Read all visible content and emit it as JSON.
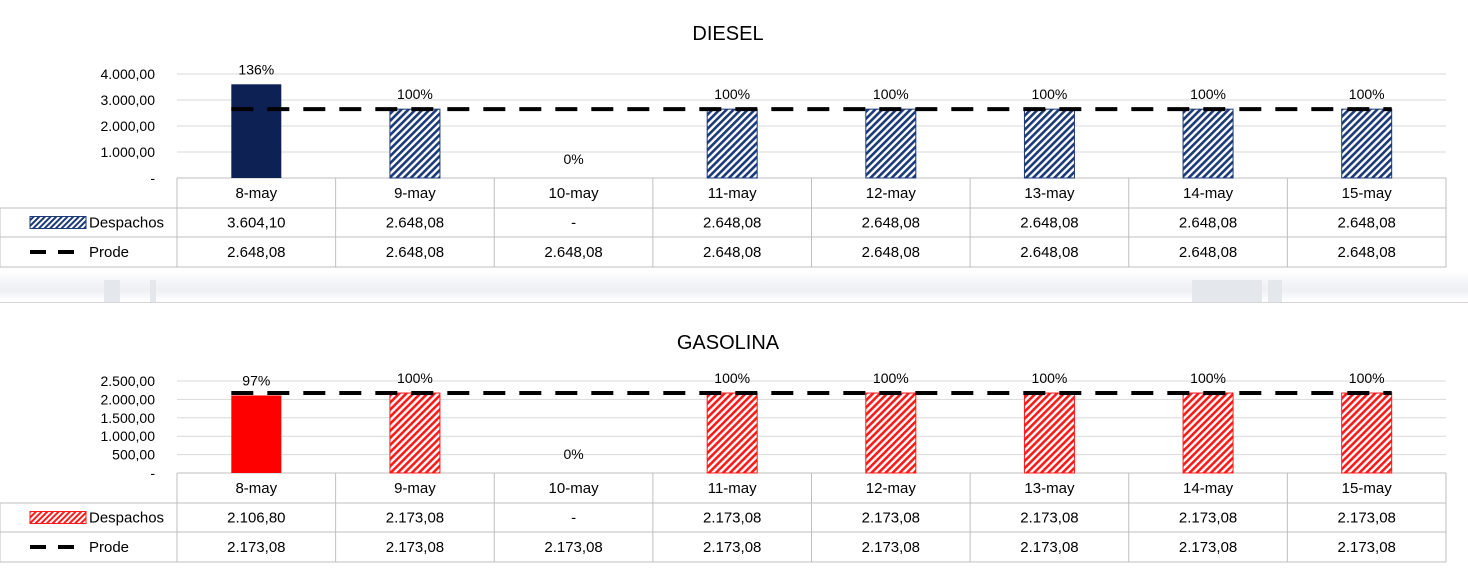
{
  "colors": {
    "diesel_solid": "#0d2154",
    "diesel_hatch": "#1c3a78",
    "gasolina_solid": "#ff0000",
    "gasolina_hatch": "#ff1a1a",
    "prode_line": "#000000",
    "grid": "#d9d9d9"
  },
  "chart_data": [
    {
      "type": "bar",
      "title": "DIESEL",
      "categories": [
        "8-may",
        "9-may",
        "10-may",
        "11-may",
        "12-may",
        "13-may",
        "14-may",
        "15-may"
      ],
      "series": [
        {
          "name": "Despachos",
          "kind": "bar",
          "values": [
            3604.1,
            2648.08,
            0,
            2648.08,
            2648.08,
            2648.08,
            2648.08,
            2648.08
          ],
          "display": [
            "3.604,10",
            "2.648,08",
            "-",
            "2.648,08",
            "2.648,08",
            "2.648,08",
            "2.648,08",
            "2.648,08"
          ]
        },
        {
          "name": "Prode",
          "kind": "line-dashed",
          "values": [
            2648.08,
            2648.08,
            2648.08,
            2648.08,
            2648.08,
            2648.08,
            2648.08,
            2648.08
          ],
          "display": [
            "2.648,08",
            "2.648,08",
            "2.648,08",
            "2.648,08",
            "2.648,08",
            "2.648,08",
            "2.648,08",
            "2.648,08"
          ]
        }
      ],
      "percent_labels": [
        "136%",
        "100%",
        "0%",
        "100%",
        "100%",
        "100%",
        "100%",
        "100%"
      ],
      "first_bar_solid": true,
      "ylim": [
        0,
        4000
      ],
      "yticks": [
        0,
        1000,
        2000,
        3000,
        4000
      ],
      "ytick_labels": [
        "-",
        "1.000,00",
        "2.000,00",
        "3.000,00",
        "4.000,00"
      ],
      "grid": true,
      "legend": "data-table"
    },
    {
      "type": "bar",
      "title": "GASOLINA",
      "categories": [
        "8-may",
        "9-may",
        "10-may",
        "11-may",
        "12-may",
        "13-may",
        "14-may",
        "15-may"
      ],
      "series": [
        {
          "name": "Despachos",
          "kind": "bar",
          "values": [
            2106.8,
            2173.08,
            0,
            2173.08,
            2173.08,
            2173.08,
            2173.08,
            2173.08
          ],
          "display": [
            "2.106,80",
            "2.173,08",
            "-",
            "2.173,08",
            "2.173,08",
            "2.173,08",
            "2.173,08",
            "2.173,08"
          ]
        },
        {
          "name": "Prode",
          "kind": "line-dashed",
          "values": [
            2173.08,
            2173.08,
            2173.08,
            2173.08,
            2173.08,
            2173.08,
            2173.08,
            2173.08
          ],
          "display": [
            "2.173,08",
            "2.173,08",
            "2.173,08",
            "2.173,08",
            "2.173,08",
            "2.173,08",
            "2.173,08",
            "2.173,08"
          ]
        }
      ],
      "percent_labels": [
        "97%",
        "100%",
        "0%",
        "100%",
        "100%",
        "100%",
        "100%",
        "100%"
      ],
      "first_bar_solid": true,
      "ylim": [
        0,
        2500
      ],
      "yticks": [
        0,
        500,
        1000,
        1500,
        2000,
        2500
      ],
      "ytick_labels": [
        "-",
        "500,00",
        "1.000,00",
        "1.500,00",
        "2.000,00",
        "2.500,00"
      ],
      "grid": true,
      "legend": "data-table"
    }
  ]
}
